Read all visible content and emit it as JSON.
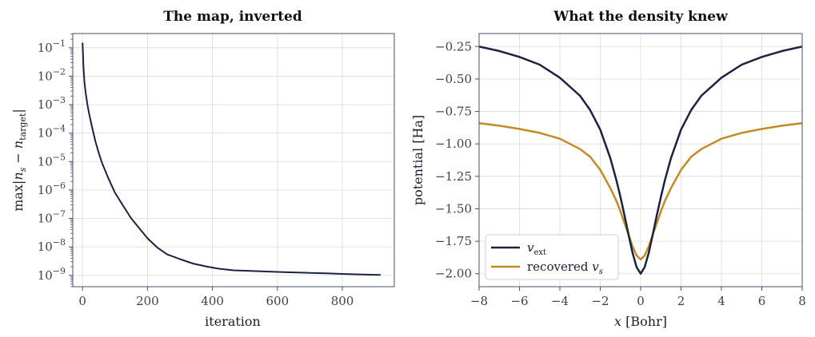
{
  "colors": {
    "navy": "#1b2340",
    "gold": "#c48a24",
    "grid": "#dcdcd6",
    "spine": "#4a5068",
    "tick_text": "#3b4256"
  },
  "chart_data": [
    {
      "type": "line",
      "title": "The map, inverted",
      "xlabel": "iteration",
      "ylabel": "max|n_s − n_target|",
      "ylabel_parts": {
        "pre": "max",
        "bar1": "|",
        "n1": "n",
        "sub1": "s",
        "minus": " − ",
        "n2": "n",
        "sub2": "target",
        "bar2": "|"
      },
      "yscale": "log",
      "xlim": [
        -30,
        960
      ],
      "ylim_exp": [
        -9.4,
        -0.5
      ],
      "xticks": [
        0,
        200,
        400,
        600,
        800
      ],
      "yticks_exp": [
        -9,
        -8,
        -7,
        -6,
        -5,
        -4,
        -3,
        -2,
        -1
      ],
      "ytick_base": "10",
      "grid": true,
      "series": [
        {
          "color": "#1b2340",
          "x": [
            0,
            3,
            6,
            10,
            15,
            20,
            30,
            40,
            50,
            60,
            80,
            100,
            125,
            150,
            175,
            200,
            230,
            260,
            300,
            340,
            380,
            420,
            465,
            500,
            550,
            600,
            650,
            700,
            750,
            800,
            850,
            900,
            918
          ],
          "y": [
            0.15,
            0.02,
            0.006,
            0.0025,
            0.001,
            0.0005,
            0.00015,
            5e-05,
            2e-05,
            9e-06,
            2.5e-06,
            8e-07,
            2.8e-07,
            1e-07,
            4.5e-08,
            2e-08,
            9.5e-09,
            5.5e-09,
            3.7e-09,
            2.6e-09,
            2.05e-09,
            1.7e-09,
            1.5e-09,
            1.45e-09,
            1.38e-09,
            1.32e-09,
            1.27e-09,
            1.22e-09,
            1.17e-09,
            1.12e-09,
            1.08e-09,
            1.04e-09,
            1.03e-09
          ]
        }
      ]
    },
    {
      "type": "line",
      "title": "What the density knew",
      "xlabel_var": "x",
      "xlabel_unit": "[Bohr]",
      "ylabel": "potential  [Ha]",
      "xlim": [
        -8,
        8
      ],
      "ylim": [
        -2.1,
        -0.15
      ],
      "xticks": [
        -8,
        -6,
        -4,
        -2,
        0,
        2,
        4,
        6,
        8
      ],
      "xtick_labels": [
        "−8",
        "−6",
        "−4",
        "−2",
        "0",
        "2",
        "4",
        "6",
        "8"
      ],
      "yticks": [
        -2.0,
        -1.75,
        -1.5,
        -1.25,
        -1.0,
        -0.75,
        -0.5,
        -0.25
      ],
      "ytick_labels": [
        "−2.00",
        "−1.75",
        "−1.50",
        "−1.25",
        "−1.00",
        "−0.75",
        "−0.50",
        "−0.25"
      ],
      "grid": true,
      "legend_position": "lower-left",
      "series": [
        {
          "name": "v_ext",
          "name_parts": {
            "main": "v",
            "sub": "ext"
          },
          "color": "#1b2340",
          "x": [
            -8,
            -7,
            -6,
            -5,
            -4,
            -3,
            -2.5,
            -2,
            -1.5,
            -1.2,
            -1,
            -0.8,
            -0.6,
            -0.4,
            -0.2,
            0,
            0.2,
            0.4,
            0.6,
            0.8,
            1,
            1.2,
            1.5,
            2,
            2.5,
            3,
            4,
            5,
            6,
            7,
            8
          ],
          "y": [
            -0.25,
            -0.285,
            -0.33,
            -0.39,
            -0.49,
            -0.63,
            -0.74,
            -0.89,
            -1.11,
            -1.28,
            -1.41,
            -1.55,
            -1.7,
            -1.84,
            -1.95,
            -2.0,
            -1.95,
            -1.84,
            -1.7,
            -1.55,
            -1.41,
            -1.28,
            -1.11,
            -0.89,
            -0.74,
            -0.63,
            -0.49,
            -0.39,
            -0.33,
            -0.285,
            -0.25
          ]
        },
        {
          "name": "recovered v_s",
          "name_parts": {
            "prefix": "recovered ",
            "main": "v",
            "sub": "s"
          },
          "color": "#c48a24",
          "x": [
            -8,
            -7,
            -6,
            -5,
            -4,
            -3,
            -2.5,
            -2,
            -1.5,
            -1.2,
            -1,
            -0.8,
            -0.6,
            -0.4,
            -0.2,
            0,
            0.2,
            0.4,
            0.6,
            0.8,
            1,
            1.2,
            1.5,
            2,
            2.5,
            3,
            4,
            5,
            6,
            7,
            8
          ],
          "y": [
            -0.84,
            -0.86,
            -0.885,
            -0.915,
            -0.96,
            -1.04,
            -1.1,
            -1.2,
            -1.34,
            -1.44,
            -1.52,
            -1.61,
            -1.7,
            -1.79,
            -1.86,
            -1.89,
            -1.86,
            -1.79,
            -1.7,
            -1.61,
            -1.52,
            -1.44,
            -1.34,
            -1.2,
            -1.1,
            -1.04,
            -0.96,
            -0.915,
            -0.885,
            -0.86,
            -0.84
          ]
        }
      ]
    }
  ]
}
